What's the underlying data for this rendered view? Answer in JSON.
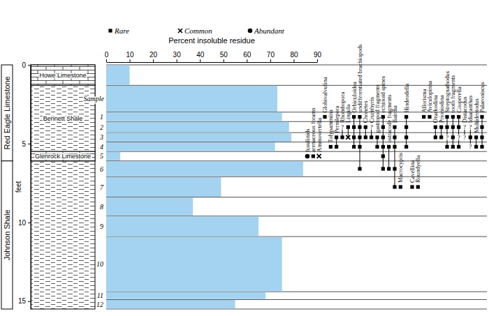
{
  "chart_data": {
    "type": "bar",
    "orientation": "horizontal",
    "x_label": "Percent insoluble residue",
    "y_label": "feet",
    "sample_label": "Sample",
    "color": "#a3d3f0",
    "categories": [
      null,
      null,
      "1",
      "2",
      "3",
      "4",
      "5",
      "6",
      "7",
      "8",
      "9",
      "10",
      "11",
      "12"
    ],
    "values": [
      10,
      73,
      75,
      78,
      79,
      72,
      6,
      84,
      49,
      37,
      65,
      75,
      68,
      55
    ],
    "bins": [
      0,
      1.3,
      3.0,
      3.6,
      4.3,
      4.9,
      5.5,
      6.1,
      7.1,
      8.4,
      9.6,
      10.9,
      14.4,
      14.9,
      15.5
    ],
    "xlim": [
      0,
      90
    ],
    "xticks": [
      0,
      10,
      20,
      30,
      40,
      50,
      60,
      70,
      80,
      90
    ],
    "ylim": [
      0,
      15.5
    ],
    "yticks": [
      0,
      5,
      10,
      15
    ],
    "formations": [
      {
        "name": "Red Eagle Limestone",
        "top": 0,
        "base": 6.1,
        "lithology": "limestone"
      },
      {
        "name": "Johnson Shale",
        "top": 6.1,
        "base": 15.5,
        "lithology": "shale"
      }
    ],
    "members": [
      {
        "name": "Howe Limestone",
        "top": 0,
        "base": 1.3,
        "lithology": "limestone"
      },
      {
        "name": "Bennett Shale",
        "top": 1.3,
        "base": 5.5,
        "lithology": "shale"
      },
      {
        "name": "Glenrock Limestone",
        "top": 5.5,
        "base": 6.1,
        "lithology": "limestone"
      }
    ],
    "abundance_classes": [
      "Rare",
      "Common",
      "Abundant"
    ],
    "taxa": [
      {
        "name": "fusulinids",
        "occurrences": [
          {
            "sample": "5",
            "abundance": "Abundant"
          }
        ]
      },
      {
        "name": "arenaceous forams",
        "occurrences": [
          {
            "sample": "5",
            "abundance": "Rare"
          }
        ]
      },
      {
        "name": "Ammovertella",
        "occurrences": [
          {
            "sample": "5",
            "abundance": "Common"
          }
        ]
      },
      {
        "name": "Globivalvulina",
        "occurrences": [
          {
            "sample": "1",
            "abundance": "Rare"
          }
        ]
      },
      {
        "name": "Tolypammina",
        "occurrences": [
          {
            "sample": "4",
            "abundance": "Rare"
          }
        ]
      },
      {
        "name": "Permlepora",
        "occurrences": [
          {
            "sample": "3",
            "abundance": "Rare"
          },
          {
            "sample": "4",
            "abundance": "Rare"
          }
        ]
      },
      {
        "name": "Rhombopora",
        "occurrences": [
          {
            "sample": "2",
            "abundance": "?"
          },
          {
            "sample": "3",
            "abundance": "Rare"
          }
        ]
      },
      {
        "name": "Lingula",
        "occurrences": [
          {
            "sample": "2",
            "abundance": "Rare"
          },
          {
            "sample": "3",
            "abundance": "Common"
          }
        ]
      },
      {
        "name": "Orbiculoidea",
        "occurrences": [
          {
            "sample": "1",
            "abundance": "Rare"
          },
          {
            "sample": "2",
            "abundance": "Rare"
          },
          {
            "sample": "3",
            "abundance": "Rare"
          },
          {
            "sample": "4",
            "abundance": "Rare"
          }
        ]
      },
      {
        "name": "undifferentiated brachiopods",
        "occurrences": [
          {
            "sample": "1",
            "abundance": "Rare"
          },
          {
            "sample": "2",
            "abundance": "Rare"
          },
          {
            "sample": "3",
            "abundance": "Rare"
          },
          {
            "sample": "4",
            "abundance": "Rare"
          },
          {
            "sample": "6",
            "abundance": "Rare"
          }
        ]
      },
      {
        "name": "Chonetes",
        "occurrences": [
          {
            "sample": "2",
            "abundance": "Rare"
          },
          {
            "sample": "3",
            "abundance": "Rare"
          }
        ]
      },
      {
        "name": "Crurithyris",
        "occurrences": [
          {
            "sample": "2",
            "abundance": "?"
          },
          {
            "sample": "3",
            "abundance": "Rare"
          }
        ]
      },
      {
        "name": "gastropod fragments",
        "occurrences": [
          {
            "sample": "3",
            "abundance": "Rare"
          },
          {
            "sample": "4",
            "abundance": "Rare"
          }
        ]
      },
      {
        "name": "echinoid spines",
        "occurrences": [
          {
            "sample": "1",
            "abundance": "Rare"
          },
          {
            "sample": "2",
            "abundance": "Rare"
          },
          {
            "sample": "3",
            "abundance": "Rare"
          },
          {
            "sample": "4",
            "abundance": "Rare"
          },
          {
            "sample": "5",
            "abundance": "Rare"
          },
          {
            "sample": "6",
            "abundance": "Rare"
          }
        ]
      },
      {
        "name": "ostracode fragments",
        "occurrences": [
          {
            "sample": "4",
            "abundance": "Rare"
          },
          {
            "sample": "6",
            "abundance": "Rare"
          }
        ]
      },
      {
        "name": "Bairdia",
        "occurrences": [
          {
            "sample": "2",
            "abundance": "Rare"
          },
          {
            "sample": "3",
            "abundance": "Rare"
          },
          {
            "sample": "4",
            "abundance": "Rare"
          },
          {
            "sample": "6",
            "abundance": "Rare"
          },
          {
            "sample": "7",
            "abundance": "Rare"
          }
        ]
      },
      {
        "name": "Macrocypris",
        "occurrences": [
          {
            "sample": "7",
            "abundance": "Rare"
          }
        ]
      },
      {
        "name": "Hindeodella",
        "occurrences": [
          {
            "sample": "1",
            "abundance": "Rare"
          },
          {
            "sample": "2",
            "abundance": "Rare"
          },
          {
            "sample": "3",
            "abundance": "Rare"
          },
          {
            "sample": "4",
            "abundance": "Rare"
          }
        ]
      },
      {
        "name": "Cavellina",
        "occurrences": [
          {
            "sample": "7",
            "abundance": "Rare"
          }
        ]
      },
      {
        "name": "Roundyella",
        "occurrences": [
          {
            "sample": "7",
            "abundance": "Rare"
          }
        ]
      },
      {
        "name": "Allorisma",
        "occurrences": [
          {
            "sample": "1",
            "abundance": "Rare"
          }
        ]
      },
      {
        "name": "Aviculopinna",
        "occurrences": [
          {
            "sample": "1",
            "abundance": "Rare"
          }
        ]
      },
      {
        "name": "Ozarkodina",
        "occurrences": [
          {
            "sample": "2",
            "abundance": "Rare"
          },
          {
            "sample": "3",
            "abundance": "Rare"
          }
        ]
      },
      {
        "name": "Prioniodina",
        "occurrences": [
          {
            "sample": "2",
            "abundance": "Rare"
          },
          {
            "sample": "3",
            "abundance": "Rare"
          }
        ]
      },
      {
        "name": "Streptognathodus",
        "occurrences": [
          {
            "sample": "1",
            "abundance": "Rare"
          },
          {
            "sample": "2",
            "abundance": "Rare"
          },
          {
            "sample": "3",
            "abundance": "?"
          },
          {
            "sample": "4",
            "abundance": "Rare"
          }
        ]
      },
      {
        "name": "tooth fragments",
        "occurrences": [
          {
            "sample": "1",
            "abundance": "Rare"
          },
          {
            "sample": "2",
            "abundance": "Rare"
          },
          {
            "sample": "3",
            "abundance": "Rare"
          },
          {
            "sample": "4",
            "abundance": "Rare"
          }
        ]
      },
      {
        "name": "Cooperella",
        "occurrences": [
          {
            "sample": "1",
            "abundance": "Rare"
          },
          {
            "sample": "2",
            "abundance": "Rare"
          },
          {
            "sample": "3",
            "abundance": "?"
          },
          {
            "sample": "4",
            "abundance": "Rare"
          }
        ]
      },
      {
        "name": "Distacodus",
        "occurrences": [
          {
            "sample": "2",
            "abundance": "?"
          },
          {
            "sample": "3",
            "abundance": "?"
          }
        ]
      },
      {
        "name": "Idiacanthus",
        "occurrences": [
          {
            "sample": "2",
            "abundance": "?"
          },
          {
            "sample": "3",
            "abundance": "Rare"
          },
          {
            "sample": "4",
            "abundance": "?"
          }
        ]
      },
      {
        "name": "Multidentodus",
        "occurrences": [
          {
            "sample": "3",
            "abundance": "Rare"
          },
          {
            "sample": "4",
            "abundance": "Rare"
          }
        ]
      },
      {
        "name": "Palaeoniscus",
        "occurrences": [
          {
            "sample": "1",
            "abundance": "Rare"
          },
          {
            "sample": "2",
            "abundance": "Rare"
          },
          {
            "sample": "3",
            "abundance": "Rare"
          },
          {
            "sample": "4",
            "abundance": "Rare"
          }
        ]
      }
    ]
  }
}
